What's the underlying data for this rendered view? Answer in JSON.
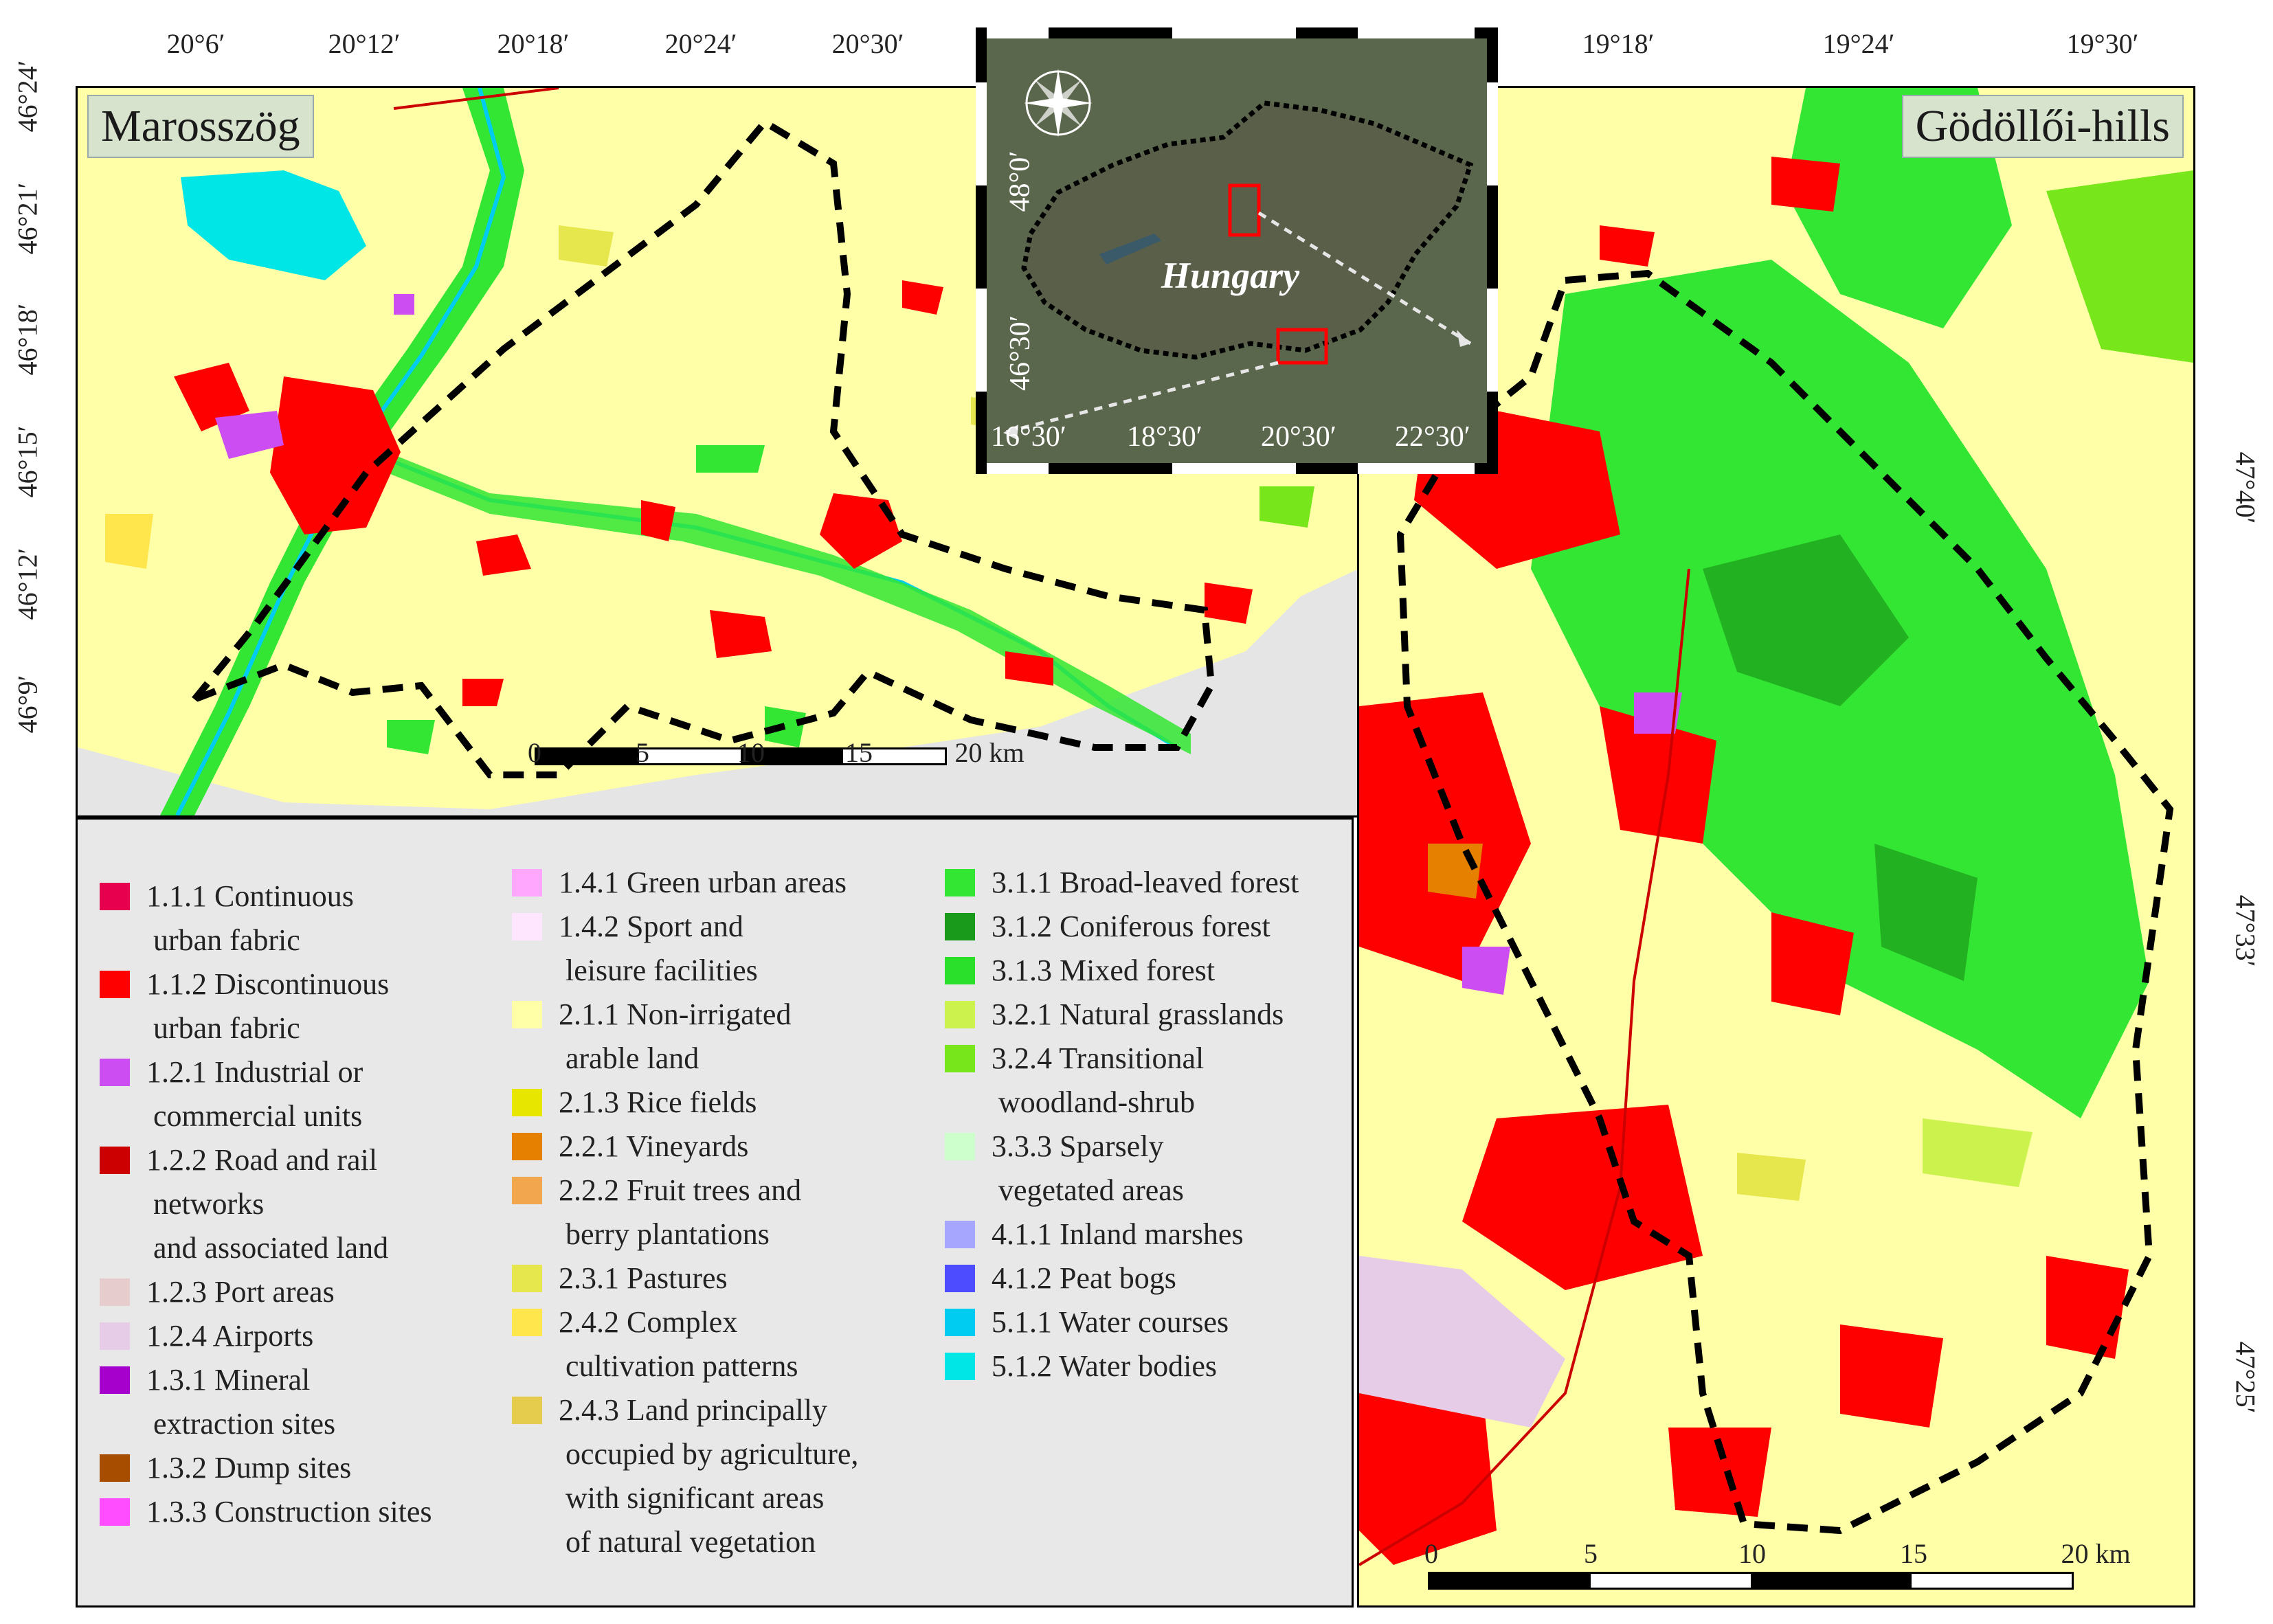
{
  "panels": {
    "left_title": "Marosszög",
    "right_title": "Gödöllői-hills",
    "inset_label": "Hungary"
  },
  "left_map": {
    "top_lon": [
      "20°6′",
      "20°12′",
      "20°18′",
      "20°24′",
      "20°30′"
    ],
    "left_lat": [
      "46°24′",
      "46°21′",
      "46°18′",
      "46°15′",
      "46°12′",
      "46°9′"
    ],
    "scale": [
      "0",
      "5",
      "10",
      "15",
      "20 km"
    ]
  },
  "right_map": {
    "top_lon": [
      "19°18′",
      "19°24′",
      "19°30′"
    ],
    "right_lat": [
      "47°40′",
      "47°33′",
      "47°25′"
    ],
    "scale": [
      "0",
      "5",
      "10",
      "15",
      "20 km"
    ]
  },
  "inset": {
    "lat": [
      "48°0′",
      "46°30′"
    ],
    "lon": [
      "16°30′",
      "18°30′",
      "20°30′",
      "22°30′"
    ]
  },
  "legend": {
    "col1": [
      {
        "code": "1.1.1",
        "lines": [
          "1.1.1 Continuous",
          "urban fabric"
        ],
        "color": "#e6004d"
      },
      {
        "code": "1.1.2",
        "lines": [
          "1.1.2 Discontinuous",
          "urban fabric"
        ],
        "color": "#ff0000"
      },
      {
        "code": "1.2.1",
        "lines": [
          "1.2.1 Industrial or",
          "commercial units"
        ],
        "color": "#cc4df2"
      },
      {
        "code": "1.2.2",
        "lines": [
          "1.2.2 Road and rail",
          "networks",
          "and associated land"
        ],
        "color": "#cc0000"
      },
      {
        "code": "1.2.3",
        "lines": [
          "1.2.3 Port areas"
        ],
        "color": "#e6cccc"
      },
      {
        "code": "1.2.4",
        "lines": [
          "1.2.4 Airports"
        ],
        "color": "#e6cce6"
      },
      {
        "code": "1.3.1",
        "lines": [
          "1.3.1 Mineral",
          "extraction sites"
        ],
        "color": "#a600cc"
      },
      {
        "code": "1.3.2",
        "lines": [
          "1.3.2 Dump sites"
        ],
        "color": "#a64d00"
      },
      {
        "code": "1.3.3",
        "lines": [
          "1.3.3 Construction sites"
        ],
        "color": "#ff4dff"
      }
    ],
    "col2": [
      {
        "code": "1.4.1",
        "lines": [
          "1.4.1 Green urban areas"
        ],
        "color": "#ffa6ff"
      },
      {
        "code": "1.4.2",
        "lines": [
          "1.4.2 Sport and",
          "leisure facilities"
        ],
        "color": "#ffe6ff"
      },
      {
        "code": "2.1.1",
        "lines": [
          "2.1.1 Non-irrigated",
          "arable land"
        ],
        "color": "#ffffa8"
      },
      {
        "code": "2.1.3",
        "lines": [
          "2.1.3 Rice fields"
        ],
        "color": "#e6e600"
      },
      {
        "code": "2.2.1",
        "lines": [
          "2.2.1 Vineyards"
        ],
        "color": "#e68000"
      },
      {
        "code": "2.2.2",
        "lines": [
          "2.2.2 Fruit trees and",
          "berry plantations"
        ],
        "color": "#f2a64d"
      },
      {
        "code": "2.3.1",
        "lines": [
          "2.3.1 Pastures"
        ],
        "color": "#e6e64d"
      },
      {
        "code": "2.4.2",
        "lines": [
          "2.4.2 Complex",
          "cultivation patterns"
        ],
        "color": "#ffe64d"
      },
      {
        "code": "2.4.3",
        "lines": [
          "2.4.3 Land principally",
          "occupied by agriculture,",
          "with significant areas",
          "of natural vegetation"
        ],
        "color": "#e6cc4d"
      }
    ],
    "col3": [
      {
        "code": "3.1.1",
        "lines": [
          "3.1.1 Broad-leaved forest"
        ],
        "color": "#33e633"
      },
      {
        "code": "3.1.2",
        "lines": [
          "3.1.2 Coniferous forest"
        ],
        "color": "#1a9a1a"
      },
      {
        "code": "3.1.3",
        "lines": [
          "3.1.3 Mixed forest"
        ],
        "color": "#2ae02a"
      },
      {
        "code": "3.2.1",
        "lines": [
          "3.2.1 Natural grasslands"
        ],
        "color": "#ccf24d"
      },
      {
        "code": "3.2.4",
        "lines": [
          "3.2.4 Transitional",
          "woodland-shrub"
        ],
        "color": "#77e61a"
      },
      {
        "code": "3.3.3",
        "lines": [
          "3.3.3 Sparsely",
          "vegetated areas"
        ],
        "color": "#ccffcc"
      },
      {
        "code": "4.1.1",
        "lines": [
          "4.1.1 Inland marshes"
        ],
        "color": "#a6a6ff"
      },
      {
        "code": "4.1.2",
        "lines": [
          "4.1.2 Peat bogs"
        ],
        "color": "#4d4dff"
      },
      {
        "code": "5.1.1",
        "lines": [
          "5.1.1 Water courses"
        ],
        "color": "#00ccf2"
      },
      {
        "code": "5.1.2",
        "lines": [
          "5.1.2 Water bodies"
        ],
        "color": "#00e6e6"
      }
    ]
  },
  "colors": {
    "arable": "#ffffa8",
    "urban": "#ff0000",
    "forest": "#33e633",
    "water": "#00e6e6",
    "boundary": "#000000"
  }
}
